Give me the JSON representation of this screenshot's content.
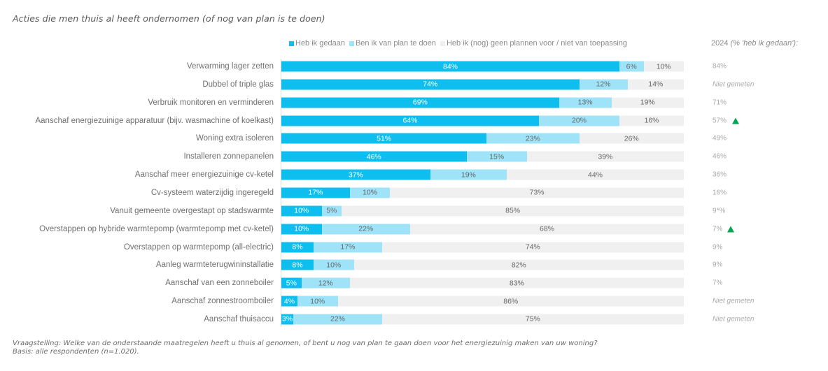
{
  "chart_data": {
    "type": "bar",
    "orientation": "horizontal",
    "stacked": true,
    "title": "Acties die men thuis al heeft ondernomen (of nog van plan is te doen)",
    "xlabel": "",
    "ylabel": "",
    "xlim": [
      0,
      100
    ],
    "grid": false,
    "legend_position": "top",
    "legend": [
      {
        "name": "Heb ik gedaan",
        "color": "#0ebeef"
      },
      {
        "name": "Ben ik van plan te doen",
        "color": "#9fe3f8"
      },
      {
        "name": "Heb ik (nog) geen plannen voor / niet van toepassing",
        "color": "#f0f0f0"
      }
    ],
    "categories": [
      "Verwarming lager zetten",
      "Dubbel of triple glas",
      "Verbruik monitoren en verminderen",
      "Aanschaf energiezuinige apparatuur (bijv. wasmachine of koelkast)",
      "Woning extra isoleren",
      "Installeren zonnepanelen",
      "Aanschaf meer energiezuinige cv-ketel",
      "Cv-systeem waterzijdig ingeregeld",
      "Vanuit gemeente overgestapt op stadswarmte",
      "Overstappen op hybride warmtepomp (warmtepomp met cv-ketel)",
      "Overstappen op warmtepomp (all-electric)",
      "Aanleg warmteterugwininstallatie",
      "Aanschaf van een zonneboiler",
      "Aanschaf zonnestroomboiler",
      "Aanschaf thuisaccu"
    ],
    "series": [
      {
        "name": "Heb ik gedaan",
        "values": [
          84,
          74,
          69,
          64,
          51,
          46,
          37,
          17,
          10,
          10,
          8,
          8,
          5,
          4,
          3
        ]
      },
      {
        "name": "Ben ik van plan te doen",
        "values": [
          6,
          12,
          13,
          20,
          23,
          15,
          19,
          10,
          5,
          22,
          17,
          10,
          12,
          10,
          22
        ]
      },
      {
        "name": "Heb ik (nog) geen plannen voor / niet van toepassing",
        "values": [
          10,
          14,
          19,
          16,
          26,
          39,
          44,
          73,
          85,
          68,
          74,
          82,
          83,
          86,
          75
        ]
      }
    ],
    "comparison_column": {
      "header_year": "2024",
      "header_note": "(% 'heb ik gedaan'):",
      "values": [
        "84%",
        "Niet gemeten",
        "71%",
        "57%",
        "49%",
        "46%",
        "36%",
        "16%",
        "9*%",
        "7%",
        "9%",
        "9%",
        "7%",
        "Niet gemeten",
        "Niet gemeten"
      ],
      "significant_increase": [
        false,
        false,
        false,
        true,
        false,
        false,
        false,
        false,
        false,
        true,
        false,
        false,
        false,
        false,
        false
      ]
    }
  },
  "footnote": {
    "question": "Vraagstelling: Welke van de onderstaande maatregelen heeft u thuis al genomen, of bent u nog van plan te gaan doen voor het energiezuinig maken van uw woning?",
    "basis": "Basis: alle respondenten (n=1.020)."
  },
  "icons": {
    "increase": "green-up-triangle-icon"
  }
}
